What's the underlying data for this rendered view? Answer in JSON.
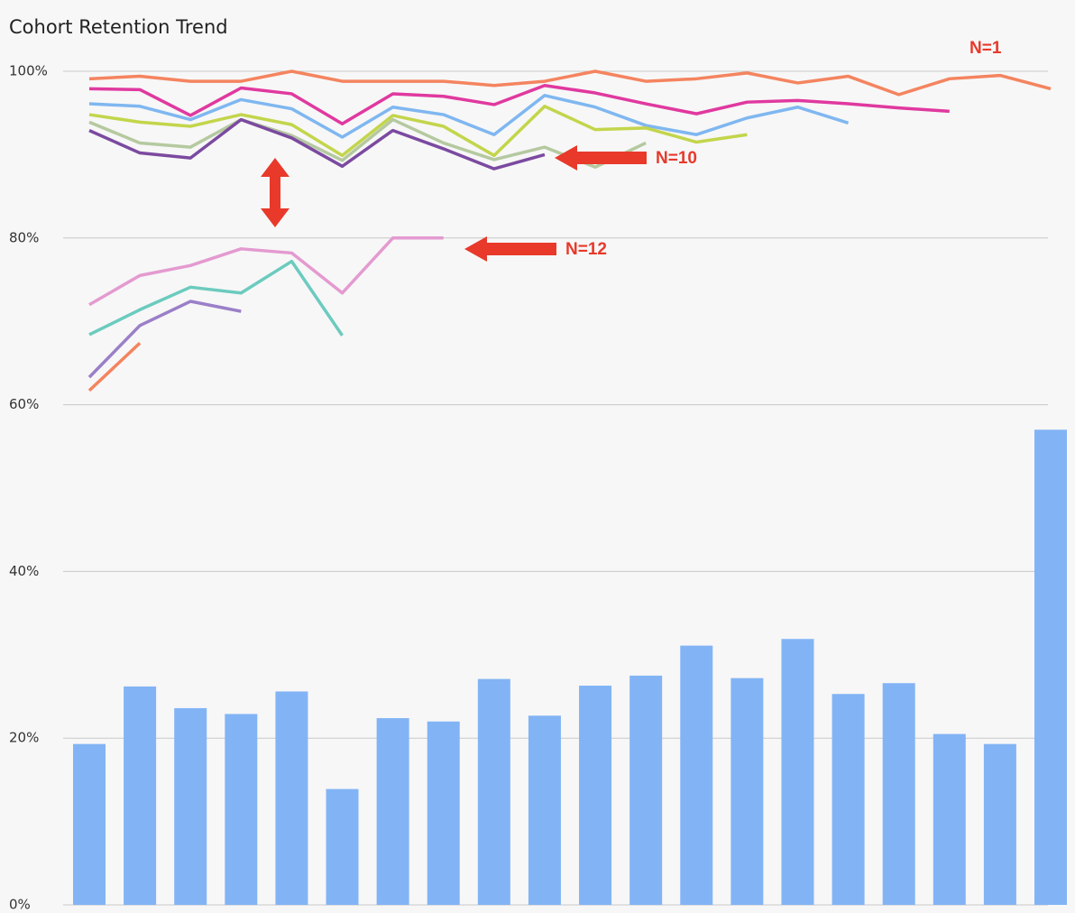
{
  "chart_data": {
    "type": "combo",
    "title": "Cohort Retention Trend",
    "categories": [
      null,
      null,
      null,
      null,
      null,
      null,
      null,
      null,
      null,
      null,
      null,
      null,
      null,
      null,
      null,
      null,
      null,
      null,
      null,
      null
    ],
    "ylim": [
      0,
      100
    ],
    "yticks": [
      {
        "value": 0,
        "label": "0%"
      },
      {
        "value": 20,
        "label": "20%"
      },
      {
        "value": 40,
        "label": "40%"
      },
      {
        "value": 60,
        "label": "60%"
      },
      {
        "value": 80,
        "label": "80%"
      },
      {
        "value": 100,
        "label": "100%"
      }
    ],
    "grid": true,
    "annotations": [
      "N=1",
      "N=10",
      "N=12"
    ],
    "annotation_color": "#e8392b",
    "series": [
      {
        "type": "bar",
        "color": "#82b4f5",
        "values": [
          19.3,
          26.2,
          23.6,
          22.9,
          25.6,
          13.9,
          22.4,
          22.0,
          27.1,
          22.7,
          26.3,
          27.5,
          31.1,
          27.2,
          31.9,
          25.3,
          26.6,
          20.5,
          19.3,
          57.0
        ]
      },
      {
        "type": "line",
        "color": "#f4845f",
        "values": [
          99.1,
          99.4,
          98.8,
          98.8,
          100,
          98.8,
          98.8,
          98.8,
          98.3,
          98.8,
          100,
          98.8,
          99.1,
          99.8,
          98.6,
          99.4,
          97.2,
          99.1,
          99.5,
          97.9
        ]
      },
      {
        "type": "line",
        "color": "#e0399f",
        "values": [
          97.9,
          97.8,
          94.7,
          98.0,
          97.3,
          93.7,
          97.3,
          97.0,
          96.0,
          98.3,
          97.4,
          96.1,
          94.9,
          96.3,
          96.5,
          96.1,
          95.6,
          95.2,
          null,
          null
        ]
      },
      {
        "type": "line",
        "color": "#7fb7f0",
        "values": [
          96.1,
          95.8,
          94.2,
          96.6,
          95.5,
          92.1,
          95.7,
          94.8,
          92.4,
          97.1,
          95.7,
          93.5,
          92.4,
          94.4,
          95.7,
          93.8,
          null,
          null,
          null,
          null
        ]
      },
      {
        "type": "line",
        "color": "#c3d54b",
        "values": [
          94.8,
          93.9,
          93.4,
          94.8,
          93.6,
          89.9,
          94.7,
          93.4,
          89.9,
          95.8,
          93.0,
          93.2,
          91.5,
          92.4,
          null,
          null,
          null,
          null,
          null,
          null
        ]
      },
      {
        "type": "line",
        "color": "#b5c9a0",
        "values": [
          93.9,
          91.4,
          90.9,
          94.2,
          92.3,
          89.3,
          94.2,
          91.4,
          89.4,
          90.9,
          88.5,
          91.4,
          null,
          null,
          null,
          null,
          null,
          null,
          null,
          null
        ]
      },
      {
        "type": "line",
        "color": "#7b4aa0",
        "values": [
          92.9,
          90.2,
          89.6,
          94.2,
          92.0,
          88.6,
          92.9,
          90.7,
          88.3,
          90.0,
          null,
          null,
          null,
          null,
          null,
          null,
          null,
          null,
          null,
          null
        ]
      },
      {
        "type": "line",
        "color": "#e49ad0",
        "values": [
          72.0,
          75.5,
          76.7,
          78.7,
          78.2,
          73.4,
          80,
          80,
          null,
          null,
          null,
          null,
          null,
          null,
          null,
          null,
          null,
          null,
          null,
          null
        ]
      },
      {
        "type": "line",
        "color": "#6bcbbe",
        "values": [
          68.4,
          71.4,
          74.1,
          73.4,
          77.2,
          68.3,
          null,
          null,
          null,
          null,
          null,
          null,
          null,
          null,
          null,
          null,
          null,
          null,
          null,
          null
        ]
      },
      {
        "type": "line",
        "color": "#9b7fc8",
        "values": [
          63.3,
          69.5,
          72.4,
          71.2,
          null,
          null,
          null,
          null,
          null,
          null,
          null,
          null,
          null,
          null,
          null,
          null,
          null,
          null,
          null,
          null
        ]
      },
      {
        "type": "line",
        "color": "#f4845f",
        "values": [
          61.7,
          67.4,
          null,
          null,
          null,
          null,
          null,
          null,
          null,
          null,
          null,
          null,
          null,
          null,
          null,
          null,
          null,
          null,
          null,
          null
        ]
      }
    ]
  }
}
